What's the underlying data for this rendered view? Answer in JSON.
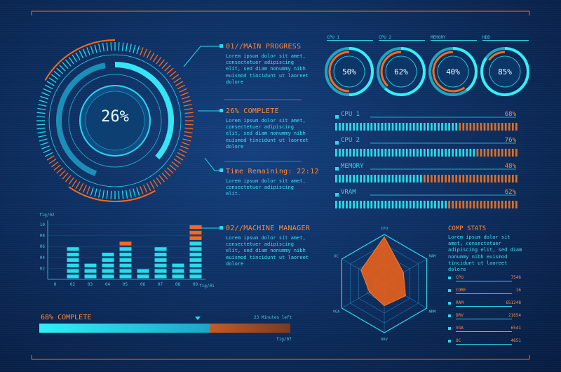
{
  "main_gauge": {
    "percent_label": "26%",
    "value": 26
  },
  "sections": [
    {
      "title": "01//MAIN PROGRESS",
      "body": "Lorem ipsum dolor sit amet, consectetuer adipiscing elit, sed diam nonummy nibh euismod tincidunt ut laoreet dolore"
    },
    {
      "title": "26% COMPLETE",
      "body": "Lorem ipsum dolor sit amet, consectetuer adipiscing elit, sed diam nonummy nibh euismod tincidunt ut laoreet dolore"
    },
    {
      "title": "Time Remaining: 22:12",
      "body": "Lorem ipsum dolor sit amet, consectetuer adipiscing elit."
    },
    {
      "title": "02//MACHINE MANAGER",
      "body": "Lorem ipsum dolor sit amet, consectetuer adipiscing elit, sed diam nonummy nibh euismod tincidunt ut laoreet dolore"
    }
  ],
  "mini_gauges": [
    {
      "tab": "CPU 1",
      "label": "50%",
      "value": 50
    },
    {
      "tab": "CPU 2",
      "label": "62%",
      "value": 62
    },
    {
      "tab": "MEMORY",
      "label": "40%",
      "value": 40
    },
    {
      "tab": "HDD",
      "label": "85%",
      "value": 85
    }
  ],
  "resource_bars": [
    {
      "name": "CPU 1",
      "value_label": "68%",
      "value": 68
    },
    {
      "name": "CPU 2",
      "value_label": "76%",
      "value": 76
    },
    {
      "name": "MEMORY",
      "value_label": "48%",
      "value": 48
    },
    {
      "name": "VRAM",
      "value_label": "62%",
      "value": 62
    }
  ],
  "chart_data": {
    "type": "bar",
    "title": "",
    "fig_label_top": "fig/02",
    "fig_label_bottom": "fig/01",
    "categories": [
      "0",
      "02",
      "03",
      "04",
      "05",
      "06",
      "07",
      "08",
      "09"
    ],
    "y_ticks": [
      "10",
      "08",
      "06",
      "04",
      "02"
    ],
    "values": [
      0,
      6,
      3,
      5,
      7,
      2,
      6,
      3,
      10
    ],
    "ylim": [
      0,
      10
    ]
  },
  "progress": {
    "label": "68% COMPLETE",
    "value": 68,
    "caption": "23 Minutes left",
    "fig_label": "fig/07"
  },
  "radar": {
    "axes": [
      "CPU",
      "RAM",
      "NRM",
      "DRV",
      "VGA",
      "OC"
    ],
    "values": [
      0.95,
      0.45,
      0.5,
      0.45,
      0.35,
      0.55
    ]
  },
  "comp_stats": {
    "title": "COMP STATS",
    "body": "Lorem ipsum dolor sit amet, consectetuer adipiscing elit, sed diam nonummy nibh euismod tincidunt ut laoreet dolore",
    "rows": [
      {
        "label": "CPU",
        "value": "7546"
      },
      {
        "label": "CORE",
        "value": "16"
      },
      {
        "label": "RAM",
        "value": "651248"
      },
      {
        "label": "DRV",
        "value": "21654"
      },
      {
        "label": "VGA",
        "value": "6541"
      },
      {
        "label": "OC",
        "value": "4651"
      }
    ]
  },
  "colors": {
    "cyan": "#27d9ec",
    "orange": "#ff6a1a",
    "dark": "#0b2a5a"
  }
}
